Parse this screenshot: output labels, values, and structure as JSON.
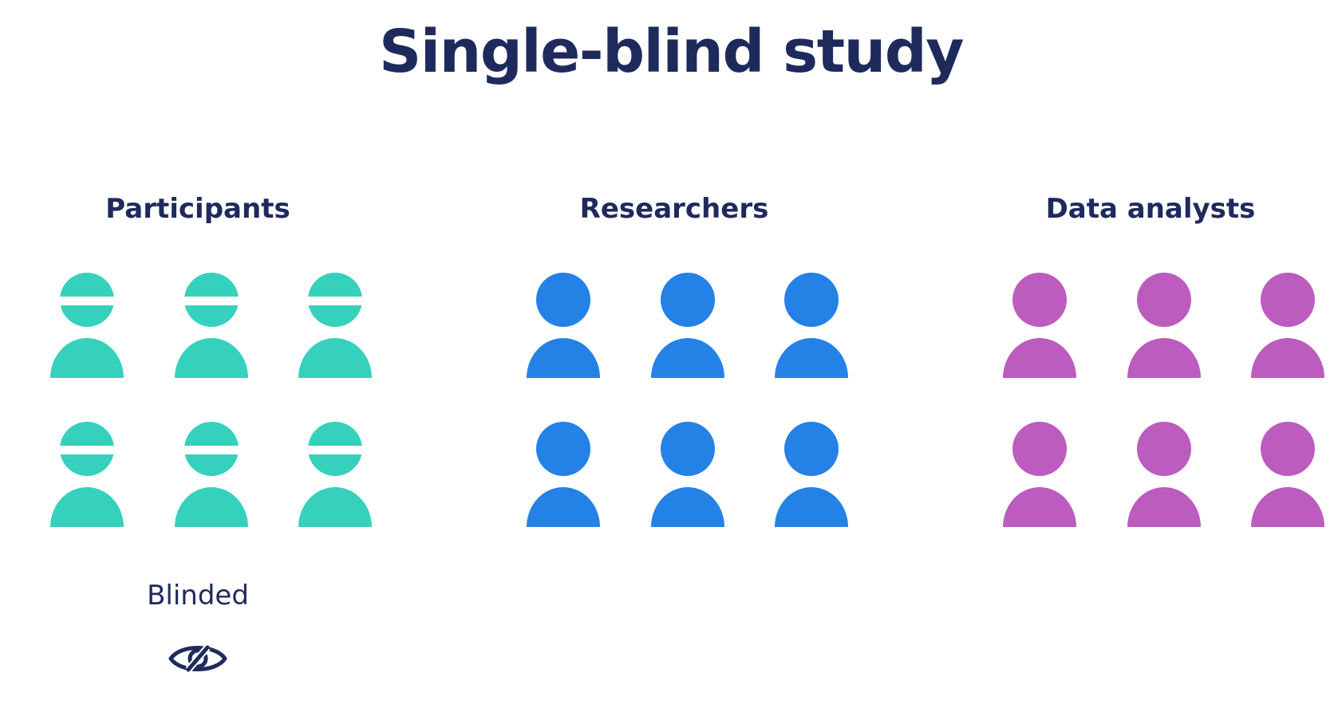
{
  "title": "Single-blind study",
  "groups": [
    {
      "label": "Participants",
      "color": "#36d1bd",
      "count": 6,
      "blinded": true,
      "status_label": "Blinded",
      "status_icon": "blinded-eye-icon"
    },
    {
      "label": "Researchers",
      "color": "#2481e6",
      "count": 6,
      "blinded": false
    },
    {
      "label": "Data analysts",
      "color": "#bb5cbe",
      "count": 6,
      "blinded": false
    }
  ]
}
